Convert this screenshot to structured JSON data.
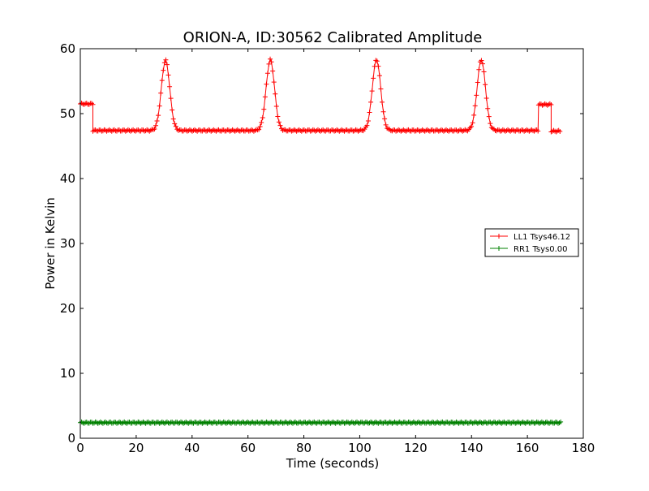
{
  "chart_data": {
    "type": "line",
    "title": "ORION-A, ID:30562 Calibrated Amplitude",
    "xlabel": "Time (seconds)",
    "ylabel": "Power in Kelvin",
    "xlim": [
      0,
      180
    ],
    "ylim": [
      0,
      60
    ],
    "xticks": [
      0,
      20,
      40,
      60,
      80,
      100,
      120,
      140,
      160,
      180
    ],
    "yticks": [
      0,
      10,
      20,
      30,
      40,
      50,
      60
    ],
    "grid": false,
    "legend_position": "right",
    "marker": "+",
    "series": [
      {
        "name": "LL1 Tsys46.12",
        "color": "#ff0000",
        "segments": [
          {
            "x_start": 0,
            "x_end": 4.5,
            "level": 51.5
          },
          {
            "x_start": 4.5,
            "x_end": 164,
            "level": 47.4,
            "peaks": [
              {
                "center": 30.5,
                "height": 58.2
              },
              {
                "center": 68,
                "height": 58.3
              },
              {
                "center": 106,
                "height": 58.3
              },
              {
                "center": 143.5,
                "height": 58.3
              }
            ]
          },
          {
            "x_start": 164,
            "x_end": 168.5,
            "level": 51.4
          },
          {
            "x_start": 168.5,
            "x_end": 172,
            "level": 47.3
          }
        ]
      },
      {
        "name": "RR1 Tsys0.00",
        "color": "#008000",
        "segments": [
          {
            "x_start": 0,
            "x_end": 172,
            "level": 2.4
          }
        ]
      }
    ]
  }
}
